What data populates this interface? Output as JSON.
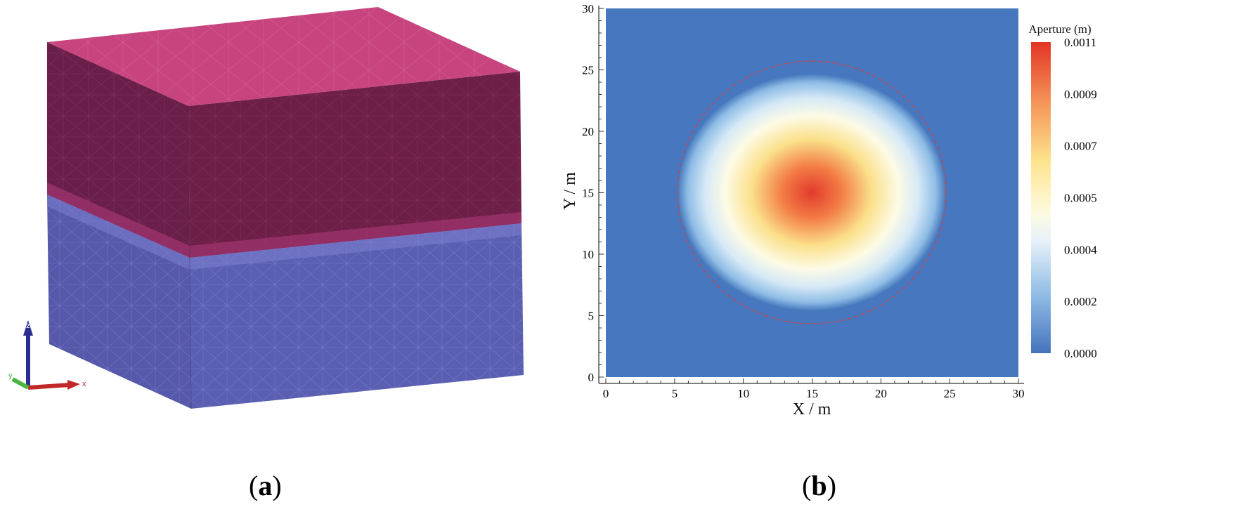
{
  "panel_a": {
    "label": "a",
    "axis_labels": {
      "x": "x",
      "y": "y",
      "z": "z"
    },
    "colors": {
      "upper_layer": "#c2457f",
      "upper_side": "#6b1f47",
      "lower_layer": "#5a5fb0"
    }
  },
  "panel_b": {
    "label": "b"
  },
  "chart_data": {
    "type": "heatmap",
    "xlabel": "X / m",
    "ylabel": "Y / m",
    "xlim": [
      0,
      30
    ],
    "ylim": [
      0,
      30
    ],
    "x_ticks": [
      "0",
      "5",
      "10",
      "15",
      "20",
      "25",
      "30"
    ],
    "y_ticks": [
      "0",
      "5",
      "10",
      "15",
      "20",
      "25",
      "30"
    ],
    "colorbar": {
      "title": "Aperture (m)",
      "ticks": [
        "0.0000",
        "0.0002",
        "0.0004",
        "0.0005",
        "0.0007",
        "0.0009",
        "0.0011"
      ],
      "range": [
        0,
        0.0011
      ]
    },
    "field": {
      "center": [
        15,
        15
      ],
      "peak_value": 0.0011,
      "background_value": 0.0,
      "bounding_circle_radius": 10.7
    },
    "grid": false
  }
}
